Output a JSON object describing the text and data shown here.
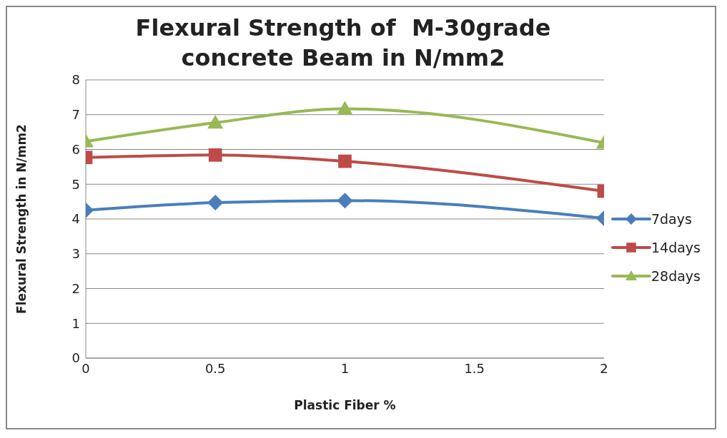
{
  "chart_data": {
    "type": "line",
    "title": "Flexural Strength of  M-30grade concrete Beam in N/mm2",
    "xlabel": "Plastic Fiber %",
    "ylabel": "Flexural Strength in N/mm2",
    "x": [
      0,
      0.5,
      1,
      2
    ],
    "xlim": [
      0,
      2
    ],
    "xticks": [
      0,
      0.5,
      1,
      1.5,
      2
    ],
    "ylim": [
      0,
      8
    ],
    "yticks": [
      0,
      1,
      2,
      3,
      4,
      5,
      6,
      7,
      8
    ],
    "grid": "y",
    "legend": "right",
    "series": [
      {
        "name": "7days",
        "color": "#4a7ebb",
        "marker": "diamond",
        "values": [
          4.25,
          4.47,
          4.53,
          4.02
        ]
      },
      {
        "name": "14days",
        "color": "#be4b48",
        "marker": "square",
        "values": [
          5.77,
          5.84,
          5.66,
          4.8
        ]
      },
      {
        "name": "28days",
        "color": "#98b954",
        "marker": "triangle",
        "values": [
          6.23,
          6.77,
          7.17,
          6.19
        ]
      }
    ]
  }
}
